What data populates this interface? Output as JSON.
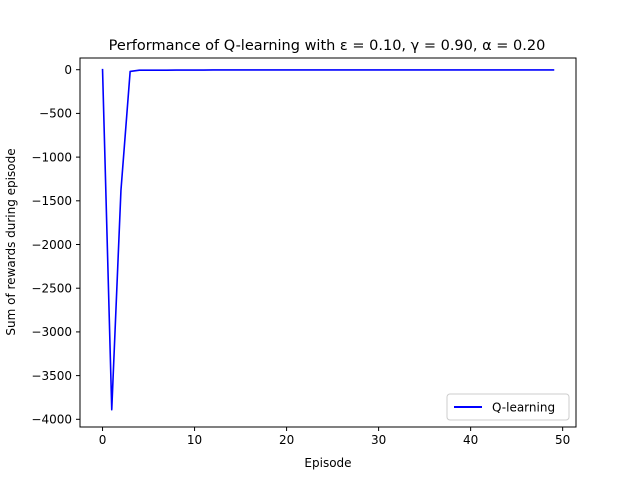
{
  "chart_data": {
    "type": "line",
    "title": "Performance of Q-learning with ε =  0.10, γ =  0.90, α =  0.20",
    "xlabel": "Episode",
    "ylabel": "Sum of rewards during episode",
    "xlim": [
      -2.45,
      51.45
    ],
    "ylim": [
      -4088,
      134
    ],
    "xticks": [
      0,
      10,
      20,
      30,
      40,
      50
    ],
    "yticks": [
      0,
      -500,
      -1000,
      -1500,
      -2000,
      -2500,
      -3000,
      -3500,
      -4000
    ],
    "grid": false,
    "legend": {
      "position": "lower-right"
    },
    "series": [
      {
        "name": "Q-learning",
        "color": "#0000ff",
        "x": [
          0,
          1,
          2,
          3,
          4,
          5,
          6,
          7,
          8,
          9,
          10,
          11,
          12,
          13,
          14,
          15,
          16,
          17,
          18,
          19,
          20,
          21,
          22,
          23,
          24,
          25,
          26,
          27,
          28,
          29,
          30,
          31,
          32,
          33,
          34,
          35,
          36,
          37,
          38,
          39,
          40,
          41,
          42,
          43,
          44,
          45,
          46,
          47,
          48,
          49
        ],
        "values": [
          0,
          -3890,
          -1380,
          -20,
          -5,
          -5,
          -5,
          -5,
          -4,
          -4,
          -4,
          -4,
          -3,
          -3,
          -3,
          -3,
          -3,
          -3,
          -3,
          -3,
          -3,
          -3,
          -3,
          -3,
          -3,
          -3,
          -3,
          -3,
          -3,
          -3,
          -3,
          -3,
          -3,
          -3,
          -3,
          -3,
          -3,
          -3,
          -3,
          -3,
          -3,
          -3,
          -3,
          -3,
          -3,
          -3,
          -3,
          -3,
          -3,
          -3
        ]
      }
    ]
  }
}
